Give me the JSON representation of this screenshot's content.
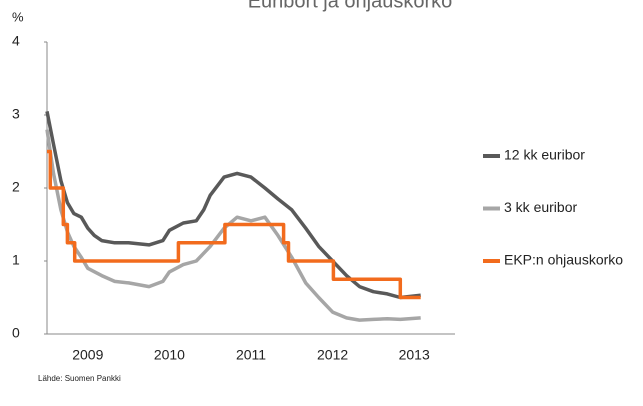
{
  "chart_data": {
    "type": "line",
    "title": "Euribort ja ohjauskorko",
    "ylabel": "%",
    "source": "Lähde: Suomen Pankki",
    "xlim": [
      2009.0,
      2014.0
    ],
    "xticks": [
      {
        "value": 2009.5,
        "label": "2009"
      },
      {
        "value": 2010.5,
        "label": "2010"
      },
      {
        "value": 2011.5,
        "label": "2011"
      },
      {
        "value": 2012.5,
        "label": "2012"
      },
      {
        "value": 2013.5,
        "label": "2013"
      }
    ],
    "ylim": [
      0,
      4
    ],
    "yticks": [
      0,
      1,
      2,
      3,
      4
    ],
    "legend": "right",
    "series": [
      {
        "name": "12 kk euribor",
        "color": "#595959",
        "x": [
          2009.0,
          2009.08,
          2009.17,
          2009.25,
          2009.33,
          2009.42,
          2009.5,
          2009.58,
          2009.67,
          2009.83,
          2010.0,
          2010.25,
          2010.42,
          2010.5,
          2010.67,
          2010.83,
          2010.92,
          2011.0,
          2011.17,
          2011.33,
          2011.5,
          2011.67,
          2011.83,
          2012.0,
          2012.17,
          2012.33,
          2012.5,
          2012.67,
          2012.83,
          2013.0,
          2013.17,
          2013.33,
          2013.58
        ],
        "values": [
          3.05,
          2.6,
          2.1,
          1.8,
          1.65,
          1.6,
          1.45,
          1.35,
          1.28,
          1.25,
          1.25,
          1.22,
          1.28,
          1.42,
          1.52,
          1.55,
          1.7,
          1.9,
          2.15,
          2.2,
          2.15,
          2.0,
          1.85,
          1.7,
          1.45,
          1.2,
          1.0,
          0.8,
          0.65,
          0.58,
          0.55,
          0.5,
          0.53
        ]
      },
      {
        "name": "3 kk euribor",
        "color": "#a6a6a6",
        "x": [
          2009.0,
          2009.08,
          2009.17,
          2009.25,
          2009.33,
          2009.42,
          2009.5,
          2009.67,
          2009.83,
          2010.0,
          2010.25,
          2010.42,
          2010.5,
          2010.67,
          2010.83,
          2011.0,
          2011.17,
          2011.33,
          2011.5,
          2011.67,
          2011.83,
          2012.0,
          2012.17,
          2012.33,
          2012.5,
          2012.67,
          2012.83,
          2013.0,
          2013.17,
          2013.33,
          2013.58
        ],
        "values": [
          2.8,
          2.2,
          1.7,
          1.4,
          1.2,
          1.05,
          0.9,
          0.8,
          0.72,
          0.7,
          0.65,
          0.72,
          0.85,
          0.95,
          1.0,
          1.2,
          1.45,
          1.6,
          1.55,
          1.6,
          1.35,
          1.05,
          0.7,
          0.5,
          0.3,
          0.22,
          0.19,
          0.2,
          0.21,
          0.2,
          0.22
        ]
      },
      {
        "name": "EKP:n ohjauskorko",
        "color": "#f26b1d",
        "x": [
          2009.0,
          2009.04,
          2009.04,
          2009.2,
          2009.2,
          2009.25,
          2009.25,
          2009.34,
          2009.34,
          2010.61,
          2010.61,
          2011.18,
          2011.18,
          2011.9,
          2011.9,
          2011.96,
          2011.96,
          2012.51,
          2012.51,
          2013.33,
          2013.33,
          2013.58
        ],
        "values": [
          2.5,
          2.5,
          2.0,
          2.0,
          1.5,
          1.5,
          1.25,
          1.25,
          1.0,
          1.0,
          1.25,
          1.25,
          1.5,
          1.5,
          1.25,
          1.25,
          1.0,
          1.0,
          0.75,
          0.75,
          0.5,
          0.5
        ]
      }
    ]
  }
}
